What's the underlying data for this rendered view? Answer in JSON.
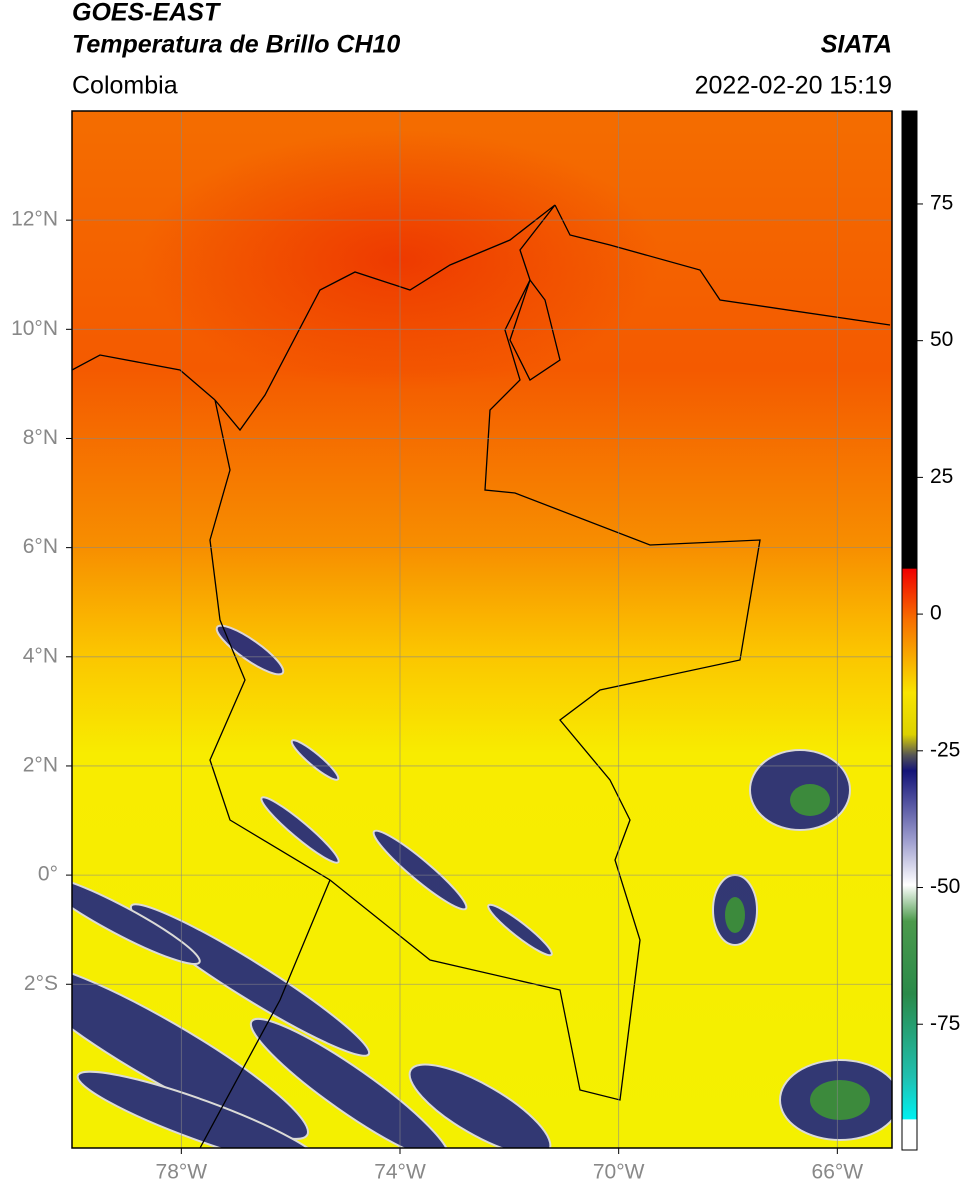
{
  "header": {
    "title": "GOES-EAST",
    "subtitle": "Temperatura de Brillo CH10",
    "source": "SIATA",
    "region": "Colombia",
    "datetime": "2022-02-20 15:19"
  },
  "map": {
    "xlim": [
      -80,
      -65
    ],
    "ylim": [
      -5,
      14
    ],
    "xticks": [
      {
        "value": -78,
        "label": "78°W"
      },
      {
        "value": -74,
        "label": "74°W"
      },
      {
        "value": -70,
        "label": "70°W"
      },
      {
        "value": -66,
        "label": "66°W"
      }
    ],
    "yticks": [
      {
        "value": 12,
        "label": "12°N"
      },
      {
        "value": 10,
        "label": "10°N"
      },
      {
        "value": 8,
        "label": "8°N"
      },
      {
        "value": 6,
        "label": "6°N"
      },
      {
        "value": 4,
        "label": "4°N"
      },
      {
        "value": 2,
        "label": "2°N"
      },
      {
        "value": 0,
        "label": "0°"
      },
      {
        "value": -2,
        "label": "2°S"
      }
    ],
    "grid": true
  },
  "colorbar": {
    "lim": [
      -98,
      92
    ],
    "ticks": [
      75,
      50,
      25,
      0,
      -25,
      -50,
      -75
    ]
  }
}
